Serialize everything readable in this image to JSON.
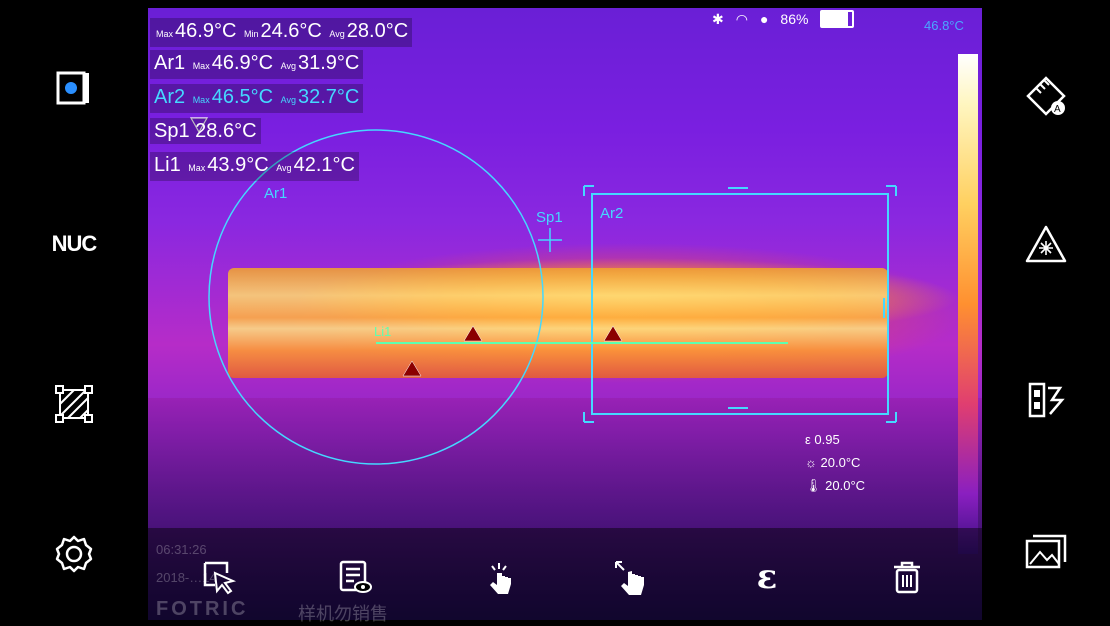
{
  "readouts": {
    "global": {
      "max_label": "Max",
      "max": "46.9°C",
      "min_label": "Min",
      "min": "24.6°C",
      "avg_label": "Avg",
      "avg": "28.0°C"
    },
    "ar1": {
      "name": "Ar1",
      "max_label": "Max",
      "max": "46.9°C",
      "avg_label": "Avg",
      "avg": "31.9°C"
    },
    "ar2": {
      "name": "Ar2",
      "max_label": "Max",
      "max": "46.5°C",
      "avg_label": "Avg",
      "avg": "32.7°C"
    },
    "sp1": {
      "name": "Sp1",
      "value": "28.6°C"
    },
    "li1": {
      "name": "Li1",
      "max_label": "Max",
      "max": "43.9°C",
      "avg_label": "Avg",
      "avg": "42.1°C"
    }
  },
  "status": {
    "battery": "86%",
    "scale_max": "46.8°C"
  },
  "markers": {
    "ar1_label": "Ar1",
    "ar2_label": "Ar2",
    "sp1_label": "Sp1",
    "li1_label": "Li1"
  },
  "params": {
    "emissivity": "0.95",
    "reflected_temp": "20.0°C",
    "ambient_temp": "20.0°C"
  },
  "footer": {
    "time": "06:31:26",
    "date": "2018-…14",
    "brand": "FOTRIC",
    "watermark": "样机勿销售"
  },
  "icons": {
    "left": [
      "file-view-icon",
      "nuc-label",
      "area-select-icon",
      "settings-gear-icon"
    ],
    "right": [
      "measure-auto-icon",
      "laser-pointer-icon",
      "palette-switch-icon",
      "gallery-icon"
    ],
    "bottom": [
      "select-pointer-icon",
      "analysis-report-icon",
      "touch-tap-icon",
      "gesture-zoom-icon",
      "emissivity-icon",
      "delete-trash-icon"
    ]
  },
  "labels": {
    "nuc": "NUC",
    "epsilon": "ε"
  },
  "colors": {
    "cyan": "#45d8ff",
    "green": "#5dffb0",
    "marker": "#8b0000"
  }
}
